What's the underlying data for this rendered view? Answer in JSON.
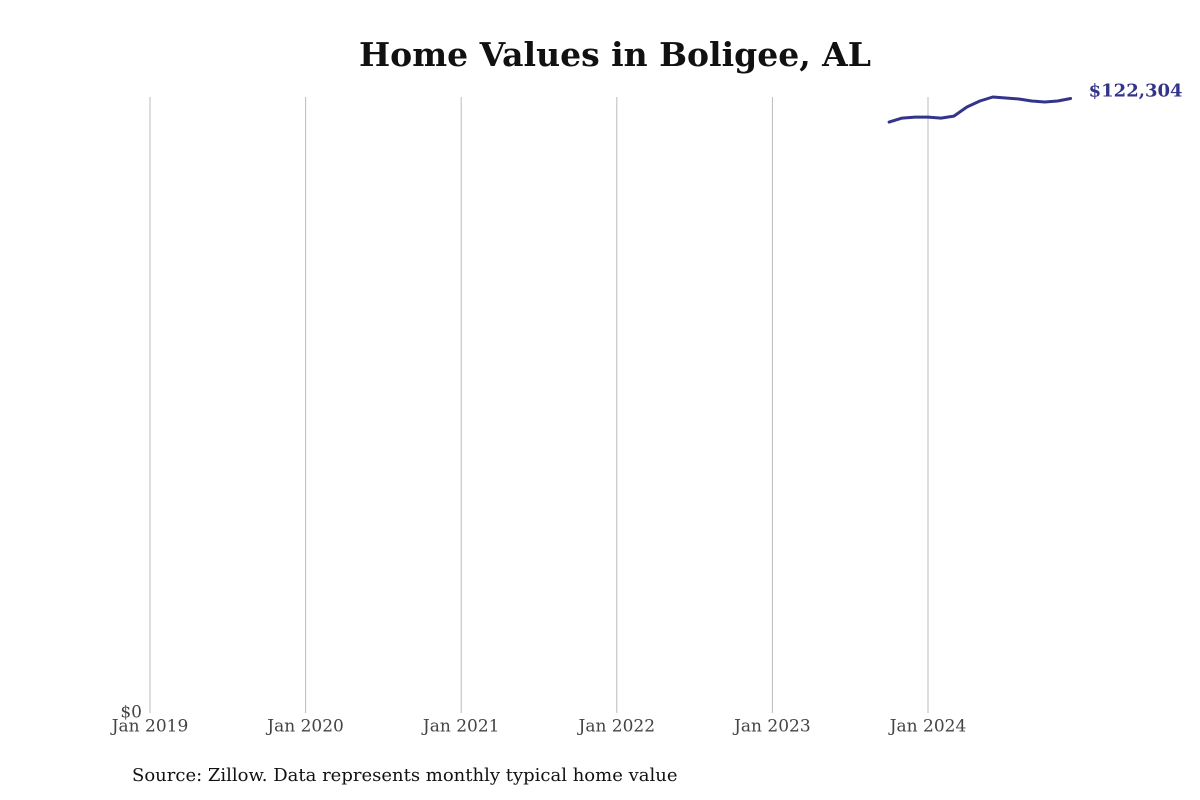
{
  "chart_data": {
    "type": "line",
    "title": "Home Values in Boligee, AL",
    "source": "Source: Zillow. Data represents monthly typical home value",
    "x": [
      "2023-10",
      "2023-11",
      "2023-12",
      "2024-01",
      "2024-02",
      "2024-03",
      "2024-04",
      "2024-05",
      "2024-06",
      "2024-07",
      "2024-08",
      "2024-09",
      "2024-10",
      "2024-11",
      "2024-12"
    ],
    "series": [
      {
        "color": "#34348a",
        "values": [
          117600,
          118400,
          118600,
          118600,
          118400,
          118800,
          120600,
          121800,
          122600,
          122400,
          122200,
          121800,
          121600,
          121800,
          122304
        ],
        "value_labels": [
          null,
          null,
          null,
          null,
          null,
          null,
          null,
          null,
          null,
          null,
          null,
          null,
          null,
          null,
          "$122,304"
        ]
      }
    ],
    "xlim": [
      "2019-01",
      "2024-12"
    ],
    "xticks": [
      {
        "value": "2019-01",
        "label": "Jan 2019"
      },
      {
        "value": "2020-01",
        "label": "Jan 2020"
      },
      {
        "value": "2021-01",
        "label": "Jan 2021"
      },
      {
        "value": "2022-01",
        "label": "Jan 2022"
      },
      {
        "value": "2023-01",
        "label": "Jan 2023"
      },
      {
        "value": "2024-01",
        "label": "Jan 2024"
      }
    ],
    "ylim": [
      0,
      122600
    ],
    "yticks": [
      {
        "value": 0,
        "label": "$0"
      }
    ],
    "grid": true
  }
}
